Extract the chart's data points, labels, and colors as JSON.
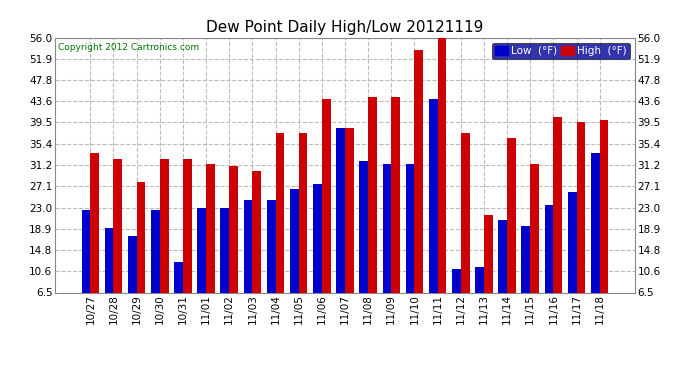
{
  "title": "Dew Point Daily High/Low 20121119",
  "copyright": "Copyright 2012 Cartronics.com",
  "background_color": "#ffffff",
  "plot_bg_color": "#ffffff",
  "grid_color": "#bbbbbb",
  "bar_width": 0.38,
  "low_color": "#0000cc",
  "high_color": "#cc0000",
  "ylim": [
    6.5,
    56.0
  ],
  "ybase": 6.5,
  "yticks": [
    6.5,
    10.6,
    14.8,
    18.9,
    23.0,
    27.1,
    31.2,
    35.4,
    39.5,
    43.6,
    47.8,
    51.9,
    56.0
  ],
  "dates": [
    "10/27",
    "10/28",
    "10/29",
    "10/30",
    "10/31",
    "11/01",
    "11/02",
    "11/03",
    "11/04",
    "11/05",
    "11/06",
    "11/07",
    "11/08",
    "11/09",
    "11/10",
    "11/11",
    "11/12",
    "11/13",
    "11/14",
    "11/15",
    "11/16",
    "11/17",
    "11/18"
  ],
  "low_values": [
    22.5,
    19.0,
    17.5,
    22.5,
    12.5,
    23.0,
    23.0,
    24.5,
    24.5,
    26.5,
    27.5,
    38.5,
    32.0,
    31.5,
    31.5,
    44.0,
    11.0,
    11.5,
    20.5,
    19.5,
    23.5,
    26.0,
    33.5
  ],
  "high_values": [
    33.5,
    32.5,
    28.0,
    32.5,
    32.5,
    31.5,
    31.0,
    30.0,
    37.5,
    37.5,
    44.0,
    38.5,
    44.5,
    44.5,
    53.5,
    57.0,
    37.5,
    21.5,
    36.5,
    31.5,
    40.5,
    39.5,
    40.0
  ],
  "legend_low_label": "Low  (°F)",
  "legend_high_label": "High  (°F)"
}
